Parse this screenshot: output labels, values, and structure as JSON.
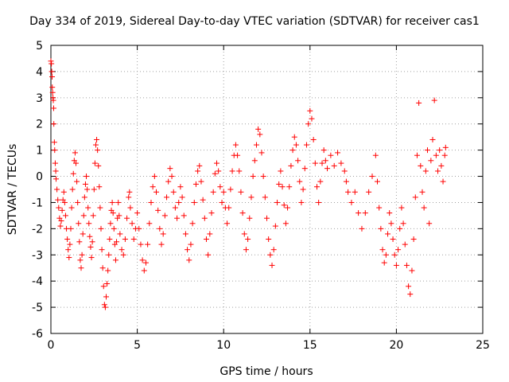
{
  "chart_data": {
    "type": "scatter",
    "title": "Day 334 of 2019, Sidereal Day-to-day VTEC variation (SDTVAR) for receiver cas1",
    "xlabel": "GPS time / hours",
    "ylabel": "SDTVAR / TECUs",
    "xlim": [
      0,
      25
    ],
    "ylim": [
      -6,
      5
    ],
    "xticks": [
      0,
      5,
      10,
      15,
      20,
      25
    ],
    "yticks": [
      -6,
      -5,
      -4,
      -3,
      -2,
      -1,
      0,
      1,
      2,
      3,
      4,
      5
    ],
    "grid": true,
    "marker": "+",
    "color": "#ff0000",
    "series": [
      {
        "name": "SDTVAR",
        "points": [
          [
            0.0,
            4.4
          ],
          [
            0.03,
            4.3
          ],
          [
            0.05,
            4.0
          ],
          [
            0.07,
            3.8
          ],
          [
            0.08,
            3.4
          ],
          [
            0.1,
            3.2
          ],
          [
            0.12,
            3.0
          ],
          [
            0.14,
            2.9
          ],
          [
            0.16,
            2.6
          ],
          [
            0.17,
            2.0
          ],
          [
            0.2,
            1.3
          ],
          [
            0.22,
            1.0
          ],
          [
            0.25,
            0.5
          ],
          [
            0.28,
            0.2
          ],
          [
            0.3,
            -0.1
          ],
          [
            0.35,
            -0.5
          ],
          [
            0.4,
            -0.9
          ],
          [
            0.45,
            -1.2
          ],
          [
            0.5,
            -1.6
          ],
          [
            0.55,
            -1.9
          ],
          [
            0.6,
            -1.7
          ],
          [
            0.65,
            -1.3
          ],
          [
            0.7,
            -0.9
          ],
          [
            0.75,
            -0.6
          ],
          [
            0.8,
            -1.0
          ],
          [
            0.85,
            -1.5
          ],
          [
            0.9,
            -2.0
          ],
          [
            0.95,
            -2.4
          ],
          [
            1.0,
            -2.8
          ],
          [
            1.05,
            -3.1
          ],
          [
            1.1,
            -2.6
          ],
          [
            1.15,
            -2.0
          ],
          [
            1.2,
            -1.2
          ],
          [
            1.25,
            -0.5
          ],
          [
            1.3,
            0.1
          ],
          [
            1.35,
            0.6
          ],
          [
            1.4,
            0.9
          ],
          [
            1.45,
            0.5
          ],
          [
            1.5,
            -0.2
          ],
          [
            1.55,
            -1.0
          ],
          [
            1.6,
            -1.8
          ],
          [
            1.65,
            -2.5
          ],
          [
            1.7,
            -3.2
          ],
          [
            1.75,
            -3.5
          ],
          [
            1.8,
            -3.0
          ],
          [
            1.85,
            -2.2
          ],
          [
            1.9,
            -1.5
          ],
          [
            1.95,
            -0.8
          ],
          [
            2.0,
            -0.3
          ],
          [
            2.05,
            0.0
          ],
          [
            2.1,
            -0.5
          ],
          [
            2.15,
            -1.2
          ],
          [
            2.2,
            -1.8
          ],
          [
            2.25,
            -2.3
          ],
          [
            2.3,
            -2.7
          ],
          [
            2.35,
            -3.1
          ],
          [
            2.4,
            -2.5
          ],
          [
            2.45,
            -1.5
          ],
          [
            2.5,
            -0.5
          ],
          [
            2.55,
            0.5
          ],
          [
            2.6,
            1.2
          ],
          [
            2.65,
            1.4
          ],
          [
            2.7,
            1.0
          ],
          [
            2.75,
            0.4
          ],
          [
            2.8,
            -0.4
          ],
          [
            2.85,
            -1.2
          ],
          [
            2.9,
            -2.0
          ],
          [
            2.95,
            -2.8
          ],
          [
            3.0,
            -3.5
          ],
          [
            3.05,
            -4.2
          ],
          [
            3.1,
            -4.9
          ],
          [
            3.15,
            -5.0
          ],
          [
            3.2,
            -4.6
          ],
          [
            3.25,
            -4.1
          ],
          [
            3.3,
            -3.6
          ],
          [
            3.35,
            -3.0
          ],
          [
            3.4,
            -2.4
          ],
          [
            3.45,
            -1.8
          ],
          [
            3.5,
            -1.3
          ],
          [
            3.55,
            -1.0
          ],
          [
            3.6,
            -1.4
          ],
          [
            3.65,
            -2.0
          ],
          [
            3.7,
            -2.6
          ],
          [
            3.75,
            -3.2
          ],
          [
            3.8,
            -2.5
          ],
          [
            3.85,
            -1.6
          ],
          [
            3.9,
            -1.0
          ],
          [
            3.95,
            -1.5
          ],
          [
            4.0,
            -2.2
          ],
          [
            4.1,
            -2.8
          ],
          [
            4.2,
            -3.0
          ],
          [
            4.3,
            -2.4
          ],
          [
            4.4,
            -1.6
          ],
          [
            4.5,
            -0.8
          ],
          [
            4.55,
            -0.6
          ],
          [
            4.6,
            -1.2
          ],
          [
            4.7,
            -1.8
          ],
          [
            4.8,
            -2.4
          ],
          [
            4.9,
            -2.0
          ],
          [
            5.0,
            -1.4
          ],
          [
            5.1,
            -2.0
          ],
          [
            5.2,
            -2.6
          ],
          [
            5.3,
            -3.2
          ],
          [
            5.4,
            -3.6
          ],
          [
            5.5,
            -3.3
          ],
          [
            5.6,
            -2.6
          ],
          [
            5.7,
            -1.8
          ],
          [
            5.8,
            -1.0
          ],
          [
            5.9,
            -0.4
          ],
          [
            6.0,
            0.0
          ],
          [
            6.1,
            -0.6
          ],
          [
            6.2,
            -1.3
          ],
          [
            6.3,
            -2.0
          ],
          [
            6.4,
            -2.6
          ],
          [
            6.5,
            -2.2
          ],
          [
            6.6,
            -1.5
          ],
          [
            6.7,
            -0.8
          ],
          [
            6.8,
            -0.2
          ],
          [
            6.9,
            0.3
          ],
          [
            7.0,
            0.0
          ],
          [
            7.1,
            -0.6
          ],
          [
            7.2,
            -1.2
          ],
          [
            7.3,
            -1.6
          ],
          [
            7.4,
            -1.0
          ],
          [
            7.5,
            -0.4
          ],
          [
            7.6,
            -0.8
          ],
          [
            7.7,
            -1.5
          ],
          [
            7.8,
            -2.2
          ],
          [
            7.9,
            -2.8
          ],
          [
            8.0,
            -3.2
          ],
          [
            8.1,
            -2.6
          ],
          [
            8.2,
            -1.8
          ],
          [
            8.3,
            -1.0
          ],
          [
            8.4,
            -0.3
          ],
          [
            8.5,
            0.2
          ],
          [
            8.6,
            0.4
          ],
          [
            8.7,
            -0.2
          ],
          [
            8.8,
            -0.9
          ],
          [
            8.9,
            -1.6
          ],
          [
            9.0,
            -2.4
          ],
          [
            9.1,
            -3.0
          ],
          [
            9.2,
            -2.2
          ],
          [
            9.3,
            -1.4
          ],
          [
            9.4,
            -0.6
          ],
          [
            9.5,
            0.1
          ],
          [
            9.6,
            0.5
          ],
          [
            9.7,
            0.2
          ],
          [
            9.8,
            -0.4
          ],
          [
            9.9,
            -1.0
          ],
          [
            10.0,
            -0.6
          ],
          [
            10.1,
            -1.2
          ],
          [
            10.2,
            -1.8
          ],
          [
            10.3,
            -1.2
          ],
          [
            10.4,
            -0.5
          ],
          [
            10.5,
            0.2
          ],
          [
            10.6,
            0.8
          ],
          [
            10.7,
            1.2
          ],
          [
            10.8,
            0.8
          ],
          [
            10.9,
            0.2
          ],
          [
            11.0,
            -0.6
          ],
          [
            11.1,
            -1.4
          ],
          [
            11.2,
            -2.2
          ],
          [
            11.3,
            -2.8
          ],
          [
            11.4,
            -2.4
          ],
          [
            11.5,
            -1.6
          ],
          [
            11.6,
            -0.8
          ],
          [
            11.7,
            0.0
          ],
          [
            11.8,
            0.6
          ],
          [
            11.9,
            1.2
          ],
          [
            12.0,
            1.8
          ],
          [
            12.1,
            1.6
          ],
          [
            12.2,
            0.9
          ],
          [
            12.3,
            0.0
          ],
          [
            12.4,
            -0.8
          ],
          [
            12.5,
            -1.6
          ],
          [
            12.6,
            -2.4
          ],
          [
            12.7,
            -3.0
          ],
          [
            12.8,
            -3.4
          ],
          [
            12.9,
            -2.8
          ],
          [
            13.0,
            -1.9
          ],
          [
            13.1,
            -1.0
          ],
          [
            13.2,
            -0.3
          ],
          [
            13.3,
            0.2
          ],
          [
            13.4,
            -0.4
          ],
          [
            13.5,
            -1.1
          ],
          [
            13.6,
            -1.8
          ],
          [
            13.7,
            -1.2
          ],
          [
            13.8,
            -0.4
          ],
          [
            13.9,
            0.4
          ],
          [
            14.0,
            1.0
          ],
          [
            14.1,
            1.5
          ],
          [
            14.2,
            1.2
          ],
          [
            14.3,
            0.6
          ],
          [
            14.4,
            -0.2
          ],
          [
            14.5,
            -1.0
          ],
          [
            14.6,
            -0.5
          ],
          [
            14.7,
            0.3
          ],
          [
            14.8,
            1.2
          ],
          [
            14.9,
            2.0
          ],
          [
            15.0,
            2.5
          ],
          [
            15.1,
            2.2
          ],
          [
            15.2,
            1.4
          ],
          [
            15.3,
            0.5
          ],
          [
            15.4,
            -0.4
          ],
          [
            15.5,
            -1.0
          ],
          [
            15.6,
            -0.2
          ],
          [
            15.7,
            0.5
          ],
          [
            15.8,
            1.0
          ],
          [
            15.9,
            0.6
          ],
          [
            16.0,
            0.3
          ],
          [
            16.2,
            0.8
          ],
          [
            16.4,
            0.4
          ],
          [
            16.6,
            0.9
          ],
          [
            16.8,
            0.5
          ],
          [
            17.0,
            0.2
          ],
          [
            17.1,
            -0.2
          ],
          [
            17.2,
            -0.6
          ],
          [
            17.4,
            -1.0
          ],
          [
            17.6,
            -0.6
          ],
          [
            17.8,
            -1.4
          ],
          [
            18.0,
            -2.0
          ],
          [
            18.2,
            -1.4
          ],
          [
            18.4,
            -0.6
          ],
          [
            18.6,
            0.0
          ],
          [
            18.8,
            0.8
          ],
          [
            18.9,
            -0.2
          ],
          [
            19.0,
            -1.2
          ],
          [
            19.1,
            -2.0
          ],
          [
            19.2,
            -2.8
          ],
          [
            19.3,
            -3.3
          ],
          [
            19.4,
            -3.0
          ],
          [
            19.5,
            -2.2
          ],
          [
            19.6,
            -1.4
          ],
          [
            19.7,
            -1.8
          ],
          [
            19.8,
            -2.4
          ],
          [
            19.9,
            -3.0
          ],
          [
            20.0,
            -3.4
          ],
          [
            20.1,
            -2.8
          ],
          [
            20.2,
            -2.0
          ],
          [
            20.3,
            -1.2
          ],
          [
            20.4,
            -1.8
          ],
          [
            20.5,
            -2.6
          ],
          [
            20.6,
            -3.4
          ],
          [
            20.7,
            -4.2
          ],
          [
            20.8,
            -4.5
          ],
          [
            20.9,
            -3.6
          ],
          [
            21.0,
            -2.4
          ],
          [
            21.1,
            -0.8
          ],
          [
            21.2,
            0.8
          ],
          [
            21.3,
            2.8
          ],
          [
            21.4,
            0.4
          ],
          [
            21.5,
            -0.6
          ],
          [
            21.6,
            -1.2
          ],
          [
            21.7,
            0.2
          ],
          [
            21.8,
            1.0
          ],
          [
            21.9,
            -1.8
          ],
          [
            22.0,
            0.6
          ],
          [
            22.1,
            1.4
          ],
          [
            22.2,
            2.9
          ],
          [
            22.3,
            0.8
          ],
          [
            22.4,
            0.2
          ],
          [
            22.5,
            1.0
          ],
          [
            22.6,
            0.4
          ],
          [
            22.7,
            -0.2
          ],
          [
            22.8,
            0.8
          ],
          [
            22.85,
            1.1
          ]
        ]
      }
    ]
  }
}
